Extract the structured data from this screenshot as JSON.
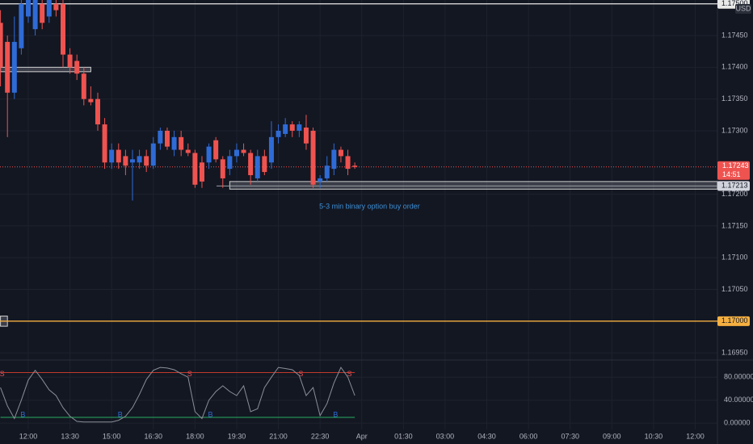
{
  "chart_data": {
    "type": "candlestick",
    "up_color": "#2f6bd6",
    "down_color": "#ef5350",
    "open": [
      1.1747,
      1.1744,
      1.1736,
      1.1743,
      1.1748,
      1.1746,
      1.175,
      1.1748,
      1.175,
      1.175,
      1.1742,
      1.1741,
      1.1739,
      1.1735,
      1.1735,
      1.1731,
      1.1725,
      1.1727,
      1.1726,
      1.1725,
      1.1725,
      1.1726,
      1.17245,
      1.1728,
      1.173,
      1.1727,
      1.1729,
      1.1727,
      1.17265,
      1.1725,
      1.1725,
      1.17285,
      1.17255,
      1.1724,
      1.1726,
      1.1727,
      1.17265,
      1.17225,
      1.1726,
      1.1725,
      1.1729,
      1.17295,
      1.1731,
      1.173,
      1.17305,
      1.173,
      1.1722,
      1.17225,
      1.1724,
      1.1727,
      1.1726,
      1.17245
    ],
    "high": [
      1.1749,
      1.1745,
      1.1748,
      1.17506,
      1.17506,
      1.17506,
      1.17506,
      1.17506,
      1.17506,
      1.17506,
      1.1743,
      1.1742,
      1.174,
      1.1737,
      1.1736,
      1.1732,
      1.1728,
      1.1728,
      1.1727,
      1.1727,
      1.1727,
      1.1727,
      1.1729,
      1.17305,
      1.17305,
      1.173,
      1.173,
      1.1728,
      1.1727,
      1.1726,
      1.1728,
      1.1729,
      1.1726,
      1.1727,
      1.1728,
      1.1728,
      1.1727,
      1.1727,
      1.1727,
      1.17315,
      1.1731,
      1.1732,
      1.17315,
      1.17315,
      1.17325,
      1.17305,
      1.1723,
      1.1726,
      1.1728,
      1.17275,
      1.1727,
      1.1725
    ],
    "low": [
      1.1737,
      1.1729,
      1.1735,
      1.1742,
      1.1747,
      1.1745,
      1.1746,
      1.1747,
      1.1748,
      1.174,
      1.1739,
      1.1738,
      1.1734,
      1.1734,
      1.173,
      1.1724,
      1.1724,
      1.1724,
      1.1723,
      1.1719,
      1.1724,
      1.17235,
      1.1724,
      1.1727,
      1.1727,
      1.1726,
      1.1726,
      1.1726,
      1.1721,
      1.1721,
      1.1724,
      1.1725,
      1.1721,
      1.1723,
      1.1725,
      1.1726,
      1.17215,
      1.1722,
      1.1723,
      1.1724,
      1.1728,
      1.1729,
      1.1729,
      1.1729,
      1.1727,
      1.1721,
      1.1721,
      1.1722,
      1.1723,
      1.1725,
      1.1723,
      1.1724
    ],
    "close": [
      1.174,
      1.1736,
      1.1744,
      1.175,
      1.17506,
      1.17506,
      1.1747,
      1.17506,
      1.1749,
      1.1742,
      1.174,
      1.1739,
      1.1735,
      1.17345,
      1.1731,
      1.1725,
      1.1727,
      1.1725,
      1.17245,
      1.17255,
      1.1726,
      1.17245,
      1.1728,
      1.173,
      1.17275,
      1.1729,
      1.1727,
      1.17265,
      1.17215,
      1.1722,
      1.17275,
      1.17255,
      1.17225,
      1.1726,
      1.1727,
      1.17265,
      1.1723,
      1.1726,
      1.17235,
      1.1729,
      1.173,
      1.1731,
      1.173,
      1.1731,
      1.1728,
      1.17215,
      1.17225,
      1.17245,
      1.1727,
      1.1726,
      1.1724,
      1.17243
    ],
    "ylim": [
      1.1694,
      1.17506
    ],
    "yticks": [
      {
        "value": 1.1695,
        "label": "1.16950"
      },
      {
        "value": 1.1705,
        "label": "1.17050"
      },
      {
        "value": 1.171,
        "label": "1.17100"
      },
      {
        "value": 1.1715,
        "label": "1.17150"
      },
      {
        "value": 1.172,
        "label": "1.17200"
      },
      {
        "value": 1.173,
        "label": "1.17300"
      },
      {
        "value": 1.1735,
        "label": "1.17350"
      },
      {
        "value": 1.174,
        "label": "1.17400"
      },
      {
        "value": 1.1745,
        "label": "1.17450"
      }
    ],
    "xlim": [
      -0.07,
      103.2
    ],
    "xticks": [
      {
        "value": 4,
        "label": "12:00"
      },
      {
        "value": 10,
        "label": "13:30"
      },
      {
        "value": 16,
        "label": "15:00"
      },
      {
        "value": 22,
        "label": "16:30"
      },
      {
        "value": 28,
        "label": "18:00"
      },
      {
        "value": 34,
        "label": "19:30"
      },
      {
        "value": 40,
        "label": "21:00"
      },
      {
        "value": 46,
        "label": "22:30"
      },
      {
        "value": 52,
        "label": "Apr"
      },
      {
        "value": 58,
        "label": "01:30"
      },
      {
        "value": 64,
        "label": "03:00"
      },
      {
        "value": 70,
        "label": "04:30"
      },
      {
        "value": 76,
        "label": "06:00"
      },
      {
        "value": 82,
        "label": "07:30"
      },
      {
        "value": 88,
        "label": "09:00"
      },
      {
        "value": 94,
        "label": "10:30"
      },
      {
        "value": 100,
        "label": "12:00"
      }
    ],
    "grid": true,
    "currency": "USD",
    "levels": [
      {
        "value": 1.175,
        "label": "1.17500",
        "color": "#e8e8e8"
      },
      {
        "value": 1.17,
        "label": "1.17000",
        "color": "#f5b041"
      }
    ],
    "current_price": {
      "value": 1.17243,
      "label": "1.17243",
      "countdown": "14:51",
      "color": "#ef5350"
    },
    "zones": [
      {
        "from": 0,
        "to": 13,
        "top": 1.174,
        "bottom": 1.17393
      },
      {
        "from": 0,
        "to": 1,
        "top": 1.17008,
        "bottom": 1.16992
      },
      {
        "from": 33,
        "to": 103.2,
        "top": 1.1722,
        "bottom": 1.17208,
        "value": 1.17213,
        "label": "1.17213"
      }
    ],
    "annotation": {
      "text": "5-3 min binary option buy order",
      "index": 46,
      "price": 1.1718,
      "color": "#3d8fd6"
    },
    "oscillator": {
      "values": [
        62,
        30,
        8,
        40,
        75,
        92,
        76,
        58,
        48,
        27,
        12,
        3,
        2,
        2,
        2,
        2,
        2,
        5,
        12,
        27,
        50,
        76,
        92,
        97,
        96,
        93,
        86,
        80,
        20,
        8,
        40,
        55,
        65,
        55,
        48,
        65,
        20,
        25,
        62,
        80,
        97,
        95,
        93,
        83,
        48,
        62,
        13,
        34,
        70,
        97,
        80,
        48
      ],
      "color": "#8a8f98",
      "y2lim": [
        -11,
        107
      ],
      "y2ticks": [
        {
          "value": 0,
          "label": "0.00000"
        },
        {
          "value": 40,
          "label": "40.00000"
        },
        {
          "value": 80,
          "label": "80.00000"
        }
      ],
      "upper": 88,
      "lower": 10,
      "upper_color": "#c0392b",
      "lower_color": "#27ae60",
      "signals": [
        {
          "index": 0,
          "label": "S"
        },
        {
          "index": 3,
          "label": "B"
        },
        {
          "index": 17,
          "label": "B"
        },
        {
          "index": 27,
          "label": "S"
        },
        {
          "index": 30,
          "label": "B"
        },
        {
          "index": 43,
          "label": "S"
        },
        {
          "index": 48,
          "label": "B"
        },
        {
          "index": 50,
          "label": "S"
        }
      ]
    }
  }
}
